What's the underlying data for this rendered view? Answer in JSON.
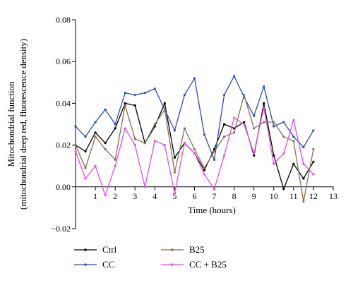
{
  "chart_data": {
    "type": "line",
    "xlabel": "Time (hours)",
    "ylabel_line1": "Mitochondrial function",
    "ylabel_line2": "(mitochondrial deep red, fluorescence density)",
    "xlim": [
      0,
      13
    ],
    "ylim": [
      -0.02,
      0.08
    ],
    "x_ticks": [
      1,
      2,
      3,
      4,
      5,
      6,
      7,
      8,
      9,
      10,
      11,
      12,
      13
    ],
    "x_tick_labels": [
      "1",
      "2",
      "3",
      "4",
      "5",
      "6",
      "7",
      "8",
      "9",
      "10",
      "11",
      "12",
      "13"
    ],
    "y_ticks": [
      -0.02,
      0,
      0.02,
      0.04,
      0.06,
      0.08
    ],
    "y_tick_labels": [
      "−0.02",
      "0.00",
      "0.02",
      "0.04",
      "0.06",
      "0.08"
    ],
    "x": [
      0,
      0.5,
      1,
      1.5,
      2,
      2.5,
      3,
      3.5,
      4,
      4.5,
      5,
      5.5,
      6,
      6.5,
      7,
      7.5,
      8,
      8.5,
      9,
      9.5,
      10,
      10.5,
      11,
      11.5,
      12
    ],
    "legend_position": "bottom",
    "series": [
      {
        "name": "Ctrl",
        "color": "#000000",
        "values": [
          0.02,
          0.017,
          0.026,
          0.021,
          0.028,
          0.04,
          0.039,
          0.021,
          0.029,
          0.04,
          0.014,
          0.021,
          0.016,
          0.008,
          0.018,
          0.03,
          0.028,
          0.031,
          0.015,
          0.04,
          0.015,
          -0.001,
          0.011,
          0.004,
          0.012
        ]
      },
      {
        "name": "CC",
        "color": "#2a4bc0",
        "values": [
          0.029,
          0.024,
          0.031,
          0.037,
          0.03,
          0.045,
          0.044,
          0.045,
          0.047,
          0.037,
          0.027,
          0.044,
          0.052,
          0.025,
          0.013,
          0.044,
          0.053,
          0.043,
          0.034,
          0.048,
          0.029,
          0.031,
          0.024,
          0.019,
          0.027
        ]
      },
      {
        "name": "B25",
        "color": "#8b6f4e",
        "values": [
          0.02,
          0.009,
          0.024,
          0.018,
          0.013,
          0.039,
          0.023,
          0.021,
          0.03,
          0.037,
          0.007,
          0.028,
          0.018,
          0.009,
          0.017,
          0.024,
          0.026,
          0.044,
          0.028,
          0.031,
          0.031,
          0.024,
          0.022,
          -0.007,
          0.018
        ]
      },
      {
        "name": "CC + B25",
        "color": "#e64ce6",
        "values": [
          0.017,
          0.004,
          0.01,
          -0.004,
          0.01,
          0.028,
          0.02,
          0.0,
          0.022,
          0.02,
          -0.003,
          0.021,
          0.016,
          0.006,
          -0.001,
          0.015,
          0.033,
          0.03,
          0.016,
          0.038,
          0.011,
          0.016,
          0.032,
          0.011,
          0.006
        ]
      }
    ]
  }
}
